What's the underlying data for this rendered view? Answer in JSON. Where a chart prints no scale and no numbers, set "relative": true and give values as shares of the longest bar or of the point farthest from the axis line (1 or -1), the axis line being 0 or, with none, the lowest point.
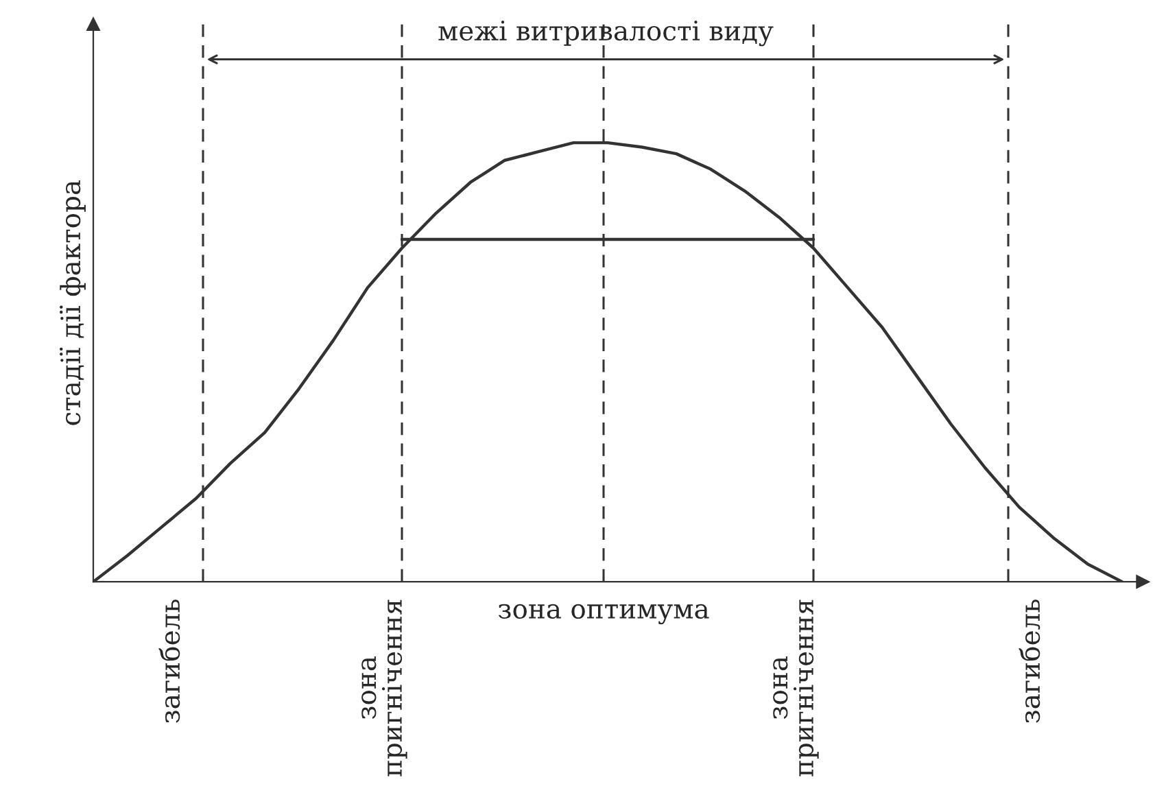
{
  "chart_data": {
    "type": "line",
    "relative": true,
    "ylabel": "стадії дії фактора",
    "categories": [
      null,
      null,
      null,
      null,
      null,
      null,
      null,
      null,
      null,
      null,
      null,
      null,
      null,
      null,
      null,
      null,
      null,
      null,
      null,
      null,
      null,
      null,
      null,
      null,
      null,
      null,
      null,
      null,
      null,
      null,
      null
    ],
    "series": [
      {
        "color": "#333333",
        "values": [
          0,
          0.06,
          0.125,
          0.19,
          0.27,
          0.34,
          0.44,
          0.55,
          0.67,
          0.76,
          0.84,
          0.91,
          0.96,
          0.98,
          1.0,
          1.0,
          0.99,
          0.975,
          0.94,
          0.89,
          0.83,
          0.76,
          0.67,
          0.58,
          0.47,
          0.36,
          0.26,
          0.17,
          0.1,
          0.04,
          0
        ]
      },
      {
        "color": "#333333",
        "values": [
          null,
          null,
          null,
          null,
          null,
          null,
          null,
          null,
          null,
          0.78,
          0.78,
          0.78,
          0.78,
          0.78,
          0.78,
          0.78,
          0.78,
          0.78,
          0.78,
          0.78,
          0.78,
          0.78,
          null,
          null,
          null,
          null,
          null,
          null,
          null,
          null,
          null
        ]
      }
    ],
    "annotations": [
      "межі витривалості виду",
      "загибель",
      "зона пригнічення",
      "зона оптимума",
      "зона пригнічення",
      "загибель"
    ],
    "line_style": "solid"
  }
}
